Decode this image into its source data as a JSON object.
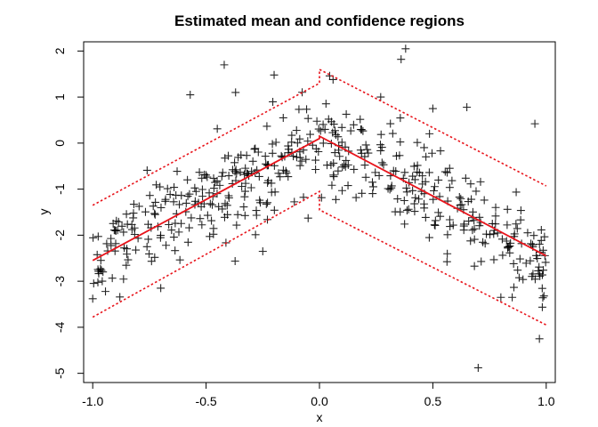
{
  "chart_data": {
    "type": "scatter",
    "title": "Estimated mean and confidence regions",
    "xlabel": "x",
    "ylabel": "y",
    "xlim": [
      -1.04,
      1.04
    ],
    "ylim": [
      -5.2,
      2.2
    ],
    "xticks": [
      -1.0,
      -0.5,
      0.0,
      0.5,
      1.0
    ],
    "xtick_labels": [
      "-1.0",
      "-0.5",
      "0.0",
      "0.5",
      "1.0"
    ],
    "yticks": [
      -5,
      -4,
      -3,
      -2,
      -1,
      0,
      1,
      2
    ],
    "ytick_labels": [
      "-5",
      "-4",
      "-3",
      "-2",
      "-1",
      "0",
      "1",
      "2"
    ],
    "marker": "+",
    "colors": {
      "points": "#000000",
      "mean": "#e8141b",
      "band": "#e8141b",
      "box": "#000000"
    },
    "sample_size": 500,
    "mean_line": {
      "name": "Estimated mean",
      "x": [
        -1.0,
        0.0,
        0.0,
        1.0
      ],
      "y": [
        -2.55,
        0.1,
        0.15,
        -2.45
      ]
    },
    "upper_band": {
      "name": "Upper confidence bound",
      "x": [
        -1.0,
        0.0,
        0.0,
        1.0
      ],
      "y": [
        -1.35,
        1.3,
        1.6,
        -0.93
      ]
    },
    "lower_band": {
      "name": "Lower confidence bound",
      "x": [
        -1.0,
        0.0,
        0.0,
        1.0
      ],
      "y": [
        -3.78,
        -1.05,
        -1.45,
        -3.95
      ]
    },
    "notable_points": [
      {
        "x": 0.38,
        "y": 2.05
      },
      {
        "x": 0.36,
        "y": 1.82
      },
      {
        "x": -0.42,
        "y": 1.7
      },
      {
        "x": -0.2,
        "y": 1.48
      },
      {
        "x": 0.06,
        "y": 1.38
      },
      {
        "x": -0.57,
        "y": 1.05
      },
      {
        "x": -0.37,
        "y": 1.1
      },
      {
        "x": 0.65,
        "y": 0.78
      },
      {
        "x": 0.5,
        "y": 0.75
      },
      {
        "x": 0.95,
        "y": 0.42
      },
      {
        "x": -0.25,
        "y": -2.35
      },
      {
        "x": -0.7,
        "y": -3.15
      },
      {
        "x": 0.7,
        "y": -4.88
      },
      {
        "x": 0.97,
        "y": -4.25
      },
      {
        "x": 0.99,
        "y": -3.32
      },
      {
        "x": 0.85,
        "y": -3.35
      },
      {
        "x": 0.8,
        "y": -3.35
      },
      {
        "x": -1.0,
        "y": -3.38
      },
      {
        "x": 0.27,
        "y": 1.0
      },
      {
        "x": -0.05,
        "y": -1.63
      }
    ]
  }
}
